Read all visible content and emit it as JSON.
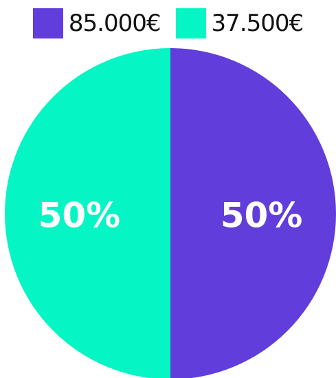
{
  "chart_data": {
    "type": "pie",
    "title": "",
    "legend_position": "top",
    "slices": [
      {
        "label": "85.000€",
        "value": 50,
        "display": "50%",
        "color": "#613ddc"
      },
      {
        "label": "37.500€",
        "value": 50,
        "display": "50%",
        "color": "#05f5c4"
      }
    ]
  }
}
